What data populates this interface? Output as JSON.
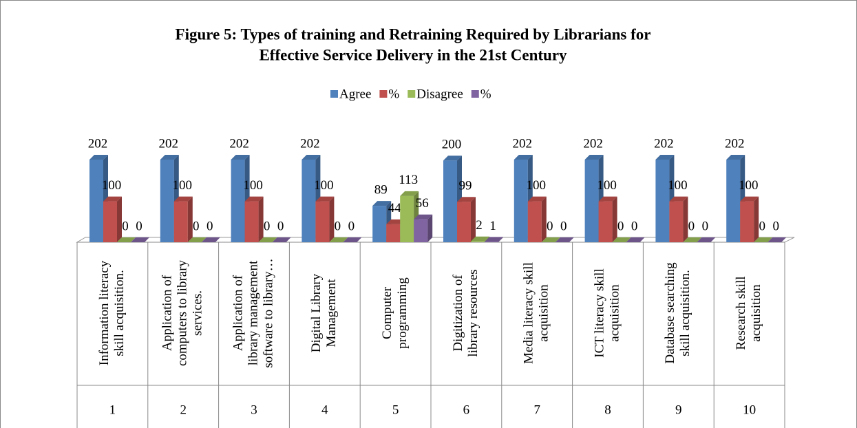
{
  "chart_data": {
    "type": "bar3d",
    "title": [
      "Figure 5: Types of training and Retraining Required by Librarians for",
      "Effective Service Delivery in the 21st Century"
    ],
    "categories": [
      [
        "Information literacy",
        "skill acquisition."
      ],
      [
        "Application of",
        "computers to library",
        "services."
      ],
      [
        "Application of",
        "library management",
        "software to library…"
      ],
      [
        "Digital Library",
        "Management"
      ],
      [
        "Computer",
        "programming"
      ],
      [
        "Digitization of",
        "library resources"
      ],
      [
        "Media literacy skill",
        "acquisition"
      ],
      [
        "ICT literacy skill",
        "acquisition"
      ],
      [
        "Database searching",
        "skill acquisition."
      ],
      [
        "Research skill",
        "acquisition"
      ]
    ],
    "category_numbers": [
      1,
      2,
      3,
      4,
      5,
      6,
      7,
      8,
      9,
      10
    ],
    "series": [
      {
        "name": "Agree",
        "color": "#4f81bd",
        "values": [
          202,
          202,
          202,
          202,
          89,
          200,
          202,
          202,
          202,
          202
        ]
      },
      {
        "name": "%",
        "color": "#c0504d",
        "values": [
          100,
          100,
          100,
          100,
          44,
          99,
          100,
          100,
          100,
          100
        ]
      },
      {
        "name": "Disagree",
        "color": "#9bbb59",
        "values": [
          0,
          0,
          0,
          0,
          113,
          2,
          0,
          0,
          0,
          0
        ]
      },
      {
        "name": "%",
        "color": "#8064a2",
        "values": [
          0,
          0,
          0,
          0,
          56,
          1,
          0,
          0,
          0,
          0
        ]
      }
    ],
    "legend": "top"
  }
}
